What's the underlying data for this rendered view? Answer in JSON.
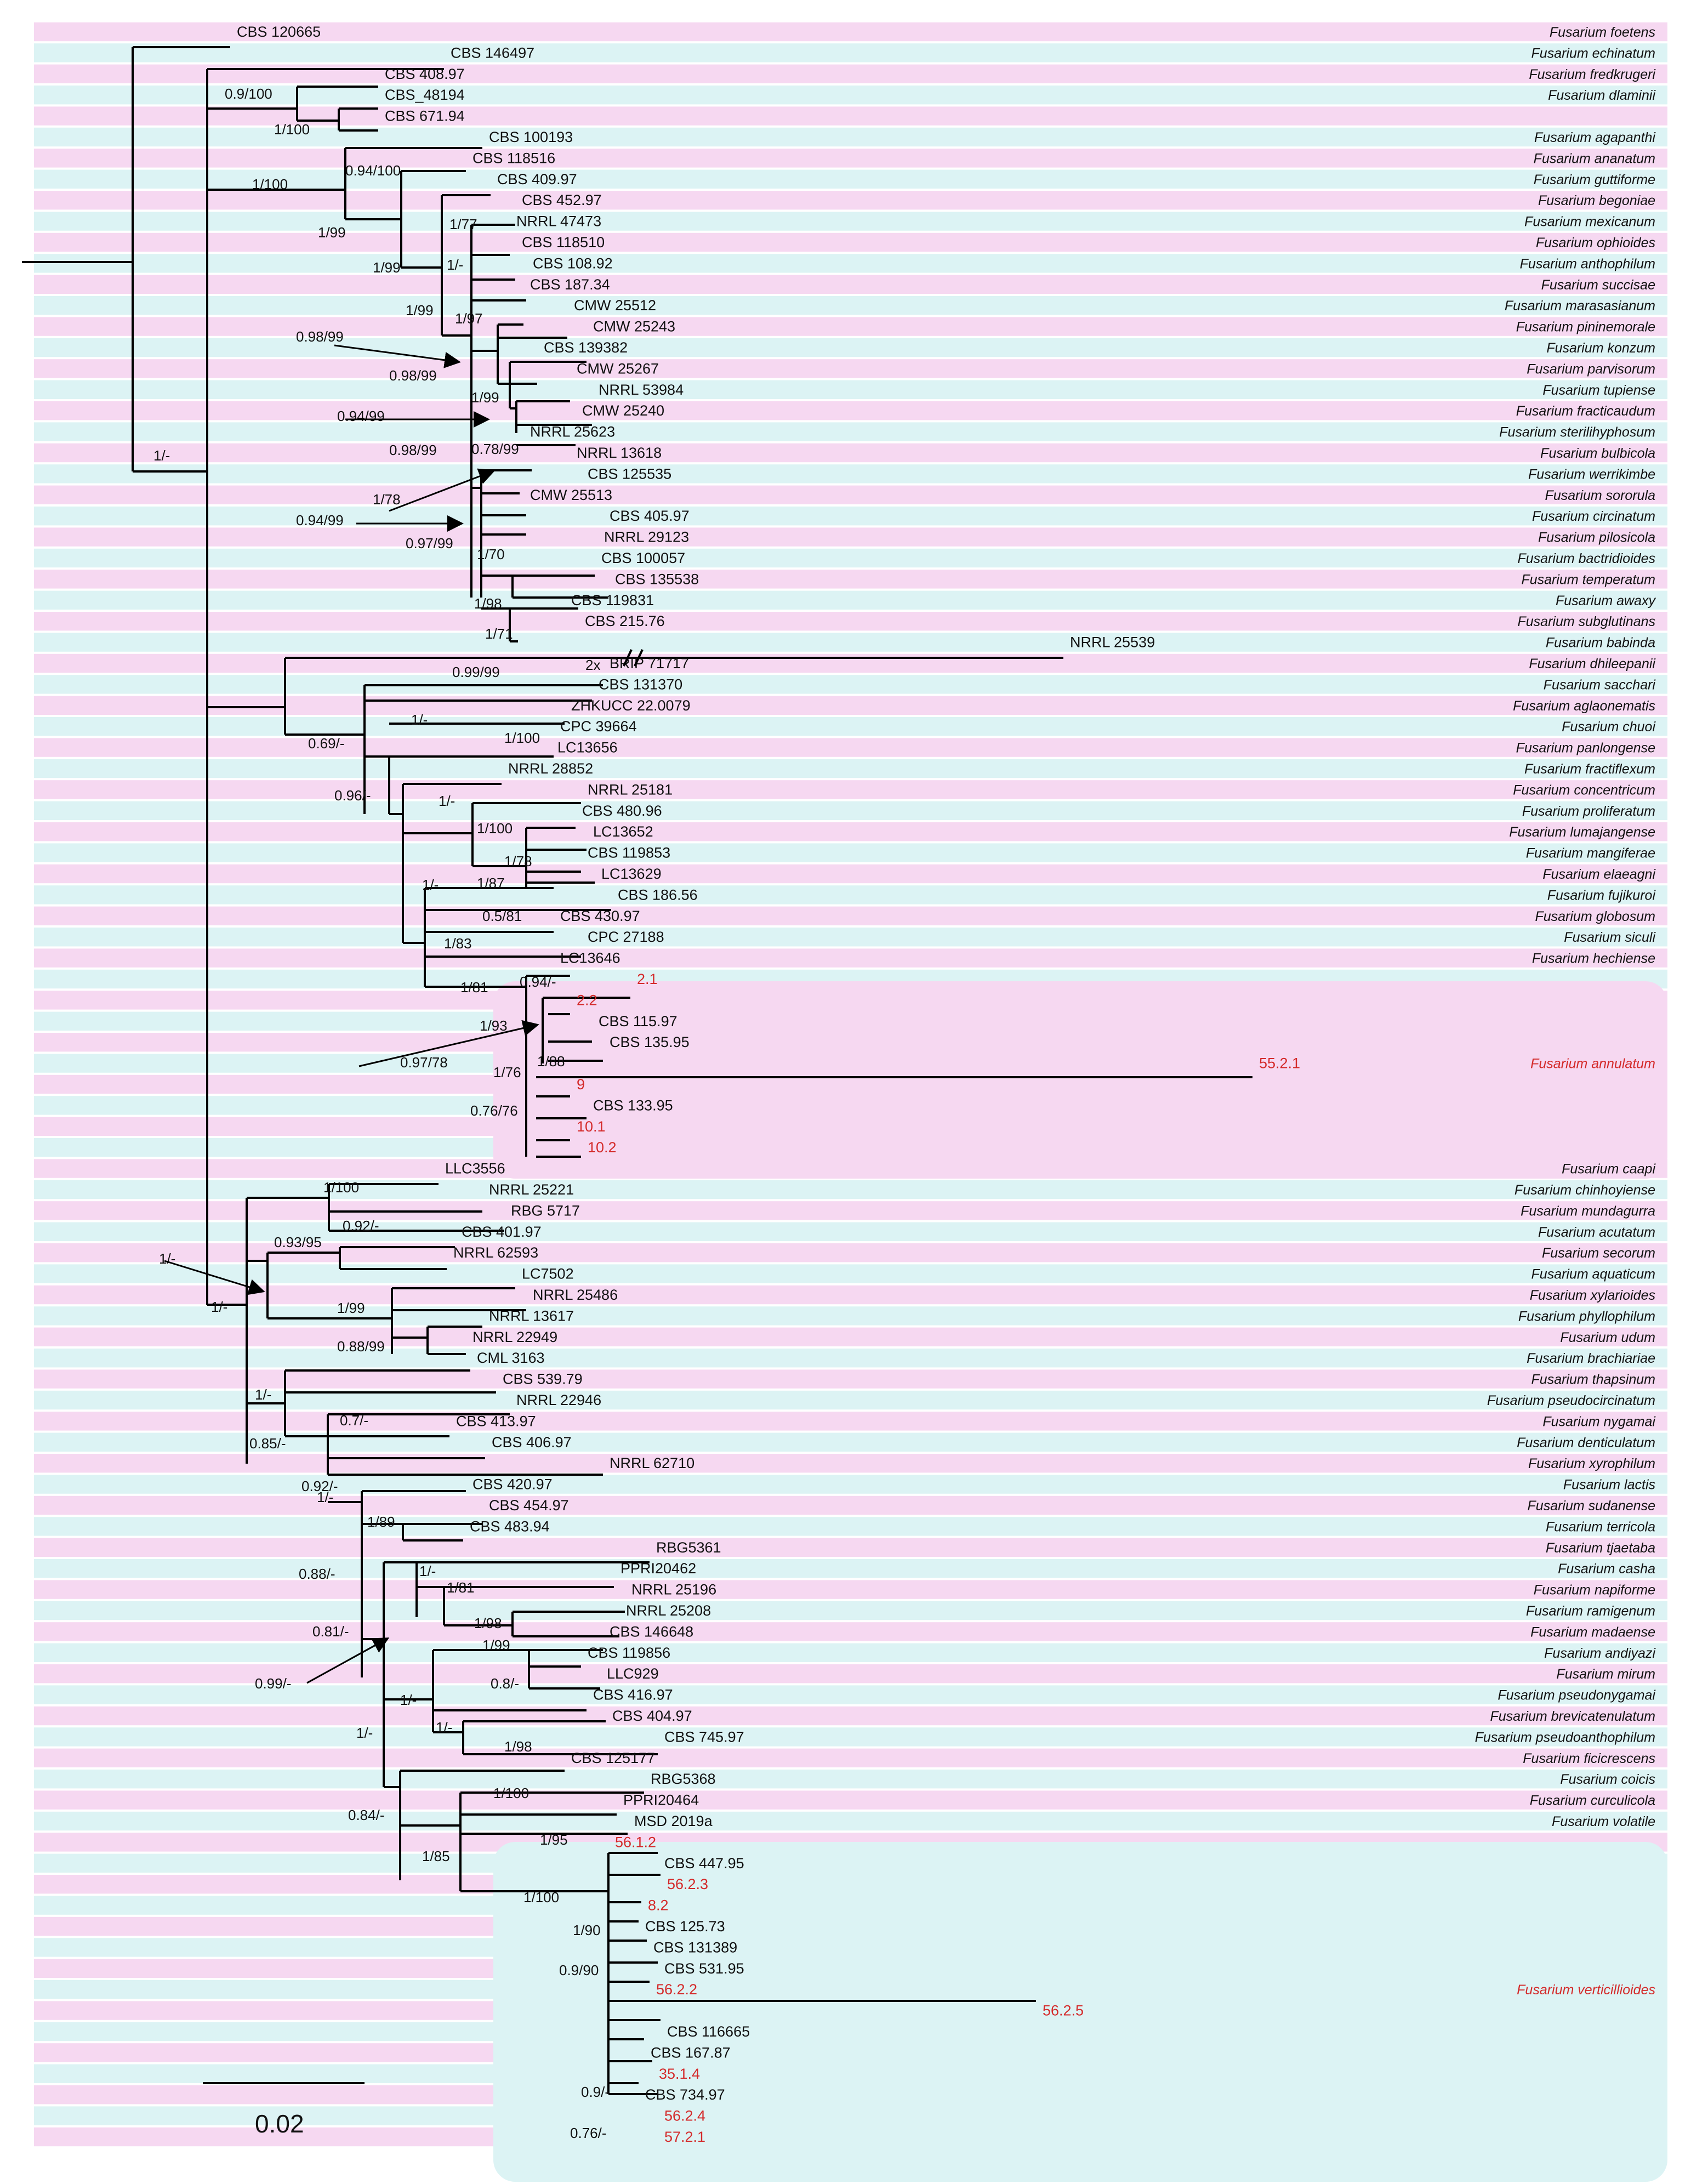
{
  "colors": {
    "pink": "#f6d8f1",
    "cyan": "#dcf3f4",
    "red": "#d42a2a"
  },
  "scale_bar": {
    "label": "0.02",
    "value": 0.02
  },
  "long_branch_mark": "2x",
  "taxa": [
    {
      "label": "CBS 120665",
      "species": "Fusarium foetens"
    },
    {
      "label": "CBS 146497",
      "species": "Fusarium echinatum"
    },
    {
      "label": "CBS 408.97",
      "species": "Fusarium fredkrugeri"
    },
    {
      "label": "CBS_48194",
      "species": "Fusarium dlaminii"
    },
    {
      "label": "CBS 671.94",
      "species": ""
    },
    {
      "label": "CBS 100193",
      "species": "Fusarium agapanthi"
    },
    {
      "label": "CBS 118516",
      "species": "Fusarium ananatum"
    },
    {
      "label": "CBS 409.97",
      "species": "Fusarium guttiforme"
    },
    {
      "label": "CBS 452.97",
      "species": "Fusarium begoniae"
    },
    {
      "label": "NRRL 47473",
      "species": "Fusarium mexicanum"
    },
    {
      "label": "CBS 118510",
      "species": "Fusarium ophioides"
    },
    {
      "label": "CBS 108.92",
      "species": "Fusarium anthophilum"
    },
    {
      "label": "CBS 187.34",
      "species": "Fusarium succisae"
    },
    {
      "label": "CMW 25512",
      "species": "Fusarium marasasianum"
    },
    {
      "label": "CMW 25243",
      "species": "Fusarium pininemorale"
    },
    {
      "label": "CBS 139382",
      "species": "Fusarium konzum"
    },
    {
      "label": "CMW 25267",
      "species": "Fusarium parvisorum"
    },
    {
      "label": "NRRL 53984",
      "species": "Fusarium tupiense"
    },
    {
      "label": "CMW 25240",
      "species": "Fusarium fracticaudum"
    },
    {
      "label": "NRRL 25623",
      "species": "Fusarium sterilihyphosum"
    },
    {
      "label": "NRRL 13618",
      "species": "Fusarium bulbicola"
    },
    {
      "label": "CBS 125535",
      "species": "Fusarium werrikimbe"
    },
    {
      "label": "CMW 25513",
      "species": "Fusarium sororula"
    },
    {
      "label": "CBS 405.97",
      "species": "Fusarium circinatum"
    },
    {
      "label": "NRRL 29123",
      "species": "Fusarium pilosicola"
    },
    {
      "label": "CBS 100057",
      "species": "Fusarium bactridioides"
    },
    {
      "label": "CBS 135538",
      "species": "Fusarium temperatum"
    },
    {
      "label": "CBS 119831",
      "species": "Fusarium awaxy"
    },
    {
      "label": "CBS 215.76",
      "species": "Fusarium subglutinans"
    },
    {
      "label": "NRRL 25539",
      "species": "Fusarium babinda"
    },
    {
      "label": "BRIP 71717",
      "species": "Fusarium dhileepanii"
    },
    {
      "label": "CBS 131370",
      "species": "Fusarium sacchari"
    },
    {
      "label": "ZHKUCC 22.0079",
      "species": "Fusarium aglaonematis"
    },
    {
      "label": "CPC 39664",
      "species": "Fusarium chuoi"
    },
    {
      "label": "LC13656",
      "species": "Fusarium panlongense"
    },
    {
      "label": "NRRL 28852",
      "species": "Fusarium fractiflexum"
    },
    {
      "label": "NRRL 25181",
      "species": "Fusarium concentricum"
    },
    {
      "label": "CBS 480.96",
      "species": "Fusarium proliferatum"
    },
    {
      "label": "LC13652",
      "species": "Fusarium lumajangense"
    },
    {
      "label": "CBS  119853",
      "species": "Fusarium mangiferae"
    },
    {
      "label": "LC13629",
      "species": "Fusarium elaeagni"
    },
    {
      "label": "CBS 186.56",
      "species": "Fusarium fujikuroi"
    },
    {
      "label": "CBS 430.97",
      "species": "Fusarium globosum"
    },
    {
      "label": "CPC 27188",
      "species": "Fusarium siculi"
    },
    {
      "label": "LC13646",
      "species": "Fusarium hechiense"
    },
    {
      "label": "2.1",
      "species": "",
      "red": true
    },
    {
      "label": "2.2",
      "species": "",
      "red": true
    },
    {
      "label": "CBS 115.97",
      "species": ""
    },
    {
      "label": "CBS 135.95",
      "species": ""
    },
    {
      "label": "55.2.1",
      "species": "Fusarium annulatum",
      "red": true
    },
    {
      "label": "9",
      "species": "",
      "red": true
    },
    {
      "label": "CBS 133.95",
      "species": ""
    },
    {
      "label": "10.1",
      "species": "",
      "red": true
    },
    {
      "label": "10.2",
      "species": "",
      "red": true
    },
    {
      "label": "LLC3556",
      "species": "Fusarium caapi"
    },
    {
      "label": "NRRL 25221",
      "species": "Fusarium chinhoyiense"
    },
    {
      "label": "RBG 5717",
      "species": "Fusarium mundagurra"
    },
    {
      "label": "CBS 401.97",
      "species": "Fusarium acutatum"
    },
    {
      "label": "NRRL 62593",
      "species": "Fusarium secorum"
    },
    {
      "label": "LC7502",
      "species": "Fusarium aquaticum"
    },
    {
      "label": "NRRL 25486",
      "species": "Fusarium xylarioides"
    },
    {
      "label": "NRRL 13617",
      "species": "Fusarium phyllophilum"
    },
    {
      "label": "NRRL 22949",
      "species": "Fusarium udum"
    },
    {
      "label": "CML 3163",
      "species": "Fusarium brachiariae"
    },
    {
      "label": "CBS 539.79",
      "species": "Fusarium thapsinum"
    },
    {
      "label": "NRRL 22946",
      "species": "Fusarium pseudocircinatum"
    },
    {
      "label": "CBS 413.97",
      "species": "Fusarium nygamai"
    },
    {
      "label": "CBS 406.97",
      "species": "Fusarium denticulatum"
    },
    {
      "label": "NRRL 62710",
      "species": "Fusarium xyrophilum"
    },
    {
      "label": "CBS 420.97",
      "species": "Fusarium lactis"
    },
    {
      "label": "CBS 454.97",
      "species": "Fusarium sudanense"
    },
    {
      "label": "CBS 483.94",
      "species": "Fusarium terricola"
    },
    {
      "label": "RBG5361",
      "species": "Fusarium tjaetaba"
    },
    {
      "label": "PPRI20462",
      "species": "Fusarium casha"
    },
    {
      "label": "NRRL 25196",
      "species": "Fusarium napiforme"
    },
    {
      "label": "NRRL 25208",
      "species": "Fusarium ramigenum"
    },
    {
      "label": "CBS 146648",
      "species": "Fusarium madaense"
    },
    {
      "label": "CBS 119856",
      "species": "Fusarium andiyazi"
    },
    {
      "label": "LLC929",
      "species": "Fusarium mirum"
    },
    {
      "label": "CBS 416.97",
      "species": "Fusarium pseudonygamai"
    },
    {
      "label": "CBS 404.97",
      "species": "Fusarium brevicatenulatum"
    },
    {
      "label": "CBS 745.97",
      "species": "Fusarium pseudoanthophilum"
    },
    {
      "label": "CBS 125177",
      "species": "Fusarium ficicrescens"
    },
    {
      "label": "RBG5368",
      "species": "Fusarium coicis"
    },
    {
      "label": "PPRI20464",
      "species": "Fusarium curculicola"
    },
    {
      "label": "MSD 2019a",
      "species": "Fusarium volatile"
    },
    {
      "label": "56.1.2",
      "species": "",
      "red": true
    },
    {
      "label": "CBS 447.95",
      "species": ""
    },
    {
      "label": "56.2.3",
      "species": "",
      "red": true
    },
    {
      "label": "8.2",
      "species": "",
      "red": true
    },
    {
      "label": "CBS 125.73",
      "species": ""
    },
    {
      "label": "CBS 131389",
      "species": ""
    },
    {
      "label": "CBS 531.95",
      "species": ""
    },
    {
      "label": "56.2.2",
      "species": "Fusarium verticillioides",
      "red": true
    },
    {
      "label": "56.2.5",
      "species": "",
      "red": true
    },
    {
      "label": "CBS 116665",
      "species": ""
    },
    {
      "label": "CBS 167.87",
      "species": ""
    },
    {
      "label": "35.1.4",
      "species": "",
      "red": true
    },
    {
      "label": "CBS 734.97",
      "species": ""
    },
    {
      "label": "56.2.4",
      "species": "",
      "red": true
    },
    {
      "label": "57.2.1",
      "species": "",
      "red": true
    }
  ],
  "supports": [
    "1/-",
    "0.9/100",
    "1/100",
    "1/100",
    "0.94/100",
    "1/99",
    "1/77",
    "1/99",
    "1/-",
    "1/99",
    "1/97",
    "0.98/99",
    "0.98/99",
    "1/99",
    "0.94/99",
    "0.98/99",
    "0.78/99",
    "1/78",
    "0.94/99",
    "0.97/99",
    "1/70",
    "1/98",
    "1/71",
    "0.99/99",
    "0.69/-",
    "1/-",
    "1/100",
    "0.96/-",
    "1/-",
    "1/100",
    "1/78",
    "1/-",
    "1/87",
    "0.5/81",
    "1/83",
    "1/81",
    "0.94/-",
    "1/93",
    "0.97/78",
    "1/88",
    "1/76",
    "0.76/76",
    "1/100",
    "0.92/-",
    "0.93/95",
    "1/-",
    "1/-",
    "1/99",
    "0.88/99",
    "1/-",
    "0.7/-",
    "0.85/-",
    "0.92/-",
    "1/-",
    "1/89",
    "0.88/-",
    "1/-",
    "1/81",
    "1/98",
    "0.81/-",
    "0.99/-",
    "1/99",
    "0.8/-",
    "1/-",
    "1/-",
    "1/98",
    "1/-",
    "0.84/-",
    "1/100",
    "1/95",
    "1/85",
    "1/100",
    "1/90",
    "0.9/90",
    "0.9/-",
    "0.76/-"
  ]
}
